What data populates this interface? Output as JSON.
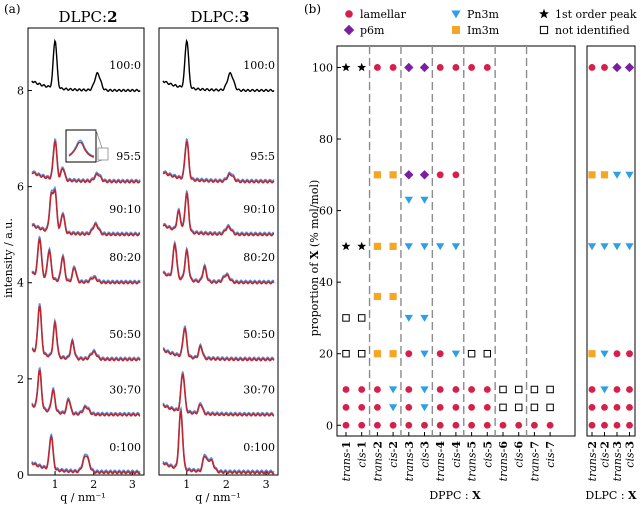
{
  "panel_a": {
    "panel_label": "(a)",
    "titles": [
      {
        "prefix": "DLPC:",
        "bold": "2"
      },
      {
        "prefix": "DLPC:",
        "bold": "3"
      }
    ],
    "ylabel": "intensity / a.u.",
    "xlabel": "q / nm⁻¹"
  },
  "panel_b": {
    "panel_label": "(b)",
    "ylabel_prefix": "proportion of ",
    "ylabel_bold": "X",
    "ylabel_suffix": " (% mol/mol)",
    "group1_prefix": "DPPC : ",
    "group1_bold": "X",
    "group2_prefix": "DLPC : ",
    "group2_bold": "X"
  },
  "legend": [
    {
      "label": "lamellar",
      "marker": "circle",
      "color": "#d6204b"
    },
    {
      "label": "Pn3m",
      "marker": "triangle",
      "color": "#2d9fe6"
    },
    {
      "label": "1st order peak",
      "marker": "star",
      "color": "#000000"
    },
    {
      "label": "p6m",
      "marker": "diamond",
      "color": "#7a1fa2"
    },
    {
      "label": "Im3m",
      "marker": "square",
      "color": "#f5a623"
    },
    {
      "label": "not identified",
      "marker": "opensquare",
      "color": "#000000"
    }
  ],
  "chart_data": [
    {
      "type": "line",
      "title": "DLPC:2",
      "xlabel": "q / nm⁻¹",
      "ylabel": "intensity / a.u.",
      "xlim": [
        0.3,
        3.3
      ],
      "ylim": [
        0,
        9.3
      ],
      "xticks": [
        1,
        2,
        3
      ],
      "yticks": [
        0,
        2,
        4,
        6,
        8
      ],
      "series": [
        {
          "name": "100:0",
          "offset": 8.0,
          "peaks": [
            [
              1.0,
              1.0
            ],
            [
              2.1,
              0.35
            ]
          ]
        },
        {
          "name": "95:5",
          "offset": 6.1,
          "peaks": [
            [
              1.0,
              0.8
            ],
            [
              1.2,
              0.25
            ],
            [
              2.1,
              0.15
            ]
          ]
        },
        {
          "name": "90:10",
          "offset": 5.0,
          "peaks": [
            [
              0.9,
              0.7
            ],
            [
              1.0,
              0.8
            ],
            [
              1.2,
              0.4
            ],
            [
              2.05,
              0.2
            ]
          ]
        },
        {
          "name": "80:20",
          "offset": 4.0,
          "peaks": [
            [
              0.6,
              0.8
            ],
            [
              0.85,
              0.6
            ],
            [
              1.2,
              0.5
            ],
            [
              1.5,
              0.3
            ],
            [
              2.0,
              0.1
            ]
          ]
        },
        {
          "name": "50:50",
          "offset": 2.4,
          "peaks": [
            [
              0.6,
              1.0
            ],
            [
              1.0,
              0.7
            ],
            [
              1.45,
              0.35
            ],
            [
              2.0,
              0.15
            ]
          ]
        },
        {
          "name": "30:70",
          "offset": 1.25,
          "peaks": [
            [
              0.6,
              0.8
            ],
            [
              0.95,
              0.45
            ],
            [
              1.35,
              0.3
            ],
            [
              1.8,
              0.15
            ]
          ]
        },
        {
          "name": "0:100",
          "offset": 0.05,
          "peaks": [
            [
              0.9,
              0.7
            ],
            [
              1.8,
              0.35
            ]
          ]
        }
      ]
    },
    {
      "type": "line",
      "title": "DLPC:3",
      "xlabel": "q / nm⁻¹",
      "xlim": [
        0.3,
        3.3
      ],
      "ylim": [
        0,
        9.3
      ],
      "xticks": [
        1,
        2,
        3
      ],
      "series": [
        {
          "name": "100:0",
          "offset": 8.0,
          "peaks": [
            [
              1.0,
              1.0
            ],
            [
              2.1,
              0.35
            ]
          ]
        },
        {
          "name": "95:5",
          "offset": 6.1,
          "peaks": [
            [
              1.0,
              0.8
            ],
            [
              2.1,
              0.15
            ]
          ]
        },
        {
          "name": "90:10",
          "offset": 5.0,
          "peaks": [
            [
              0.8,
              0.4
            ],
            [
              1.0,
              0.8
            ],
            [
              2.05,
              0.15
            ]
          ]
        },
        {
          "name": "80:20",
          "offset": 4.0,
          "peaks": [
            [
              0.7,
              0.7
            ],
            [
              1.0,
              0.6
            ],
            [
              1.45,
              0.3
            ],
            [
              2.0,
              0.15
            ]
          ]
        },
        {
          "name": "50:50",
          "offset": 2.4,
          "peaks": [
            [
              0.95,
              0.6
            ],
            [
              1.35,
              0.25
            ]
          ]
        },
        {
          "name": "30:70",
          "offset": 1.25,
          "peaks": [
            [
              0.9,
              0.8
            ],
            [
              1.35,
              0.2
            ]
          ]
        },
        {
          "name": "0:100",
          "offset": 0.05,
          "peaks": [
            [
              0.85,
              1.2
            ],
            [
              1.45,
              0.3
            ],
            [
              1.6,
              0.25
            ]
          ]
        }
      ]
    },
    {
      "type": "scatter",
      "xlabel": "DPPC : X",
      "ylabel": "proportion of X (% mol/mol)",
      "ylim": [
        -3,
        106
      ],
      "yticks": [
        0,
        20,
        40,
        60,
        80,
        100
      ],
      "categories": [
        "trans-1",
        "cis-1",
        "trans-2",
        "cis-2",
        "trans-3",
        "cis-3",
        "trans-4",
        "cis-4",
        "trans-5",
        "cis-5",
        "trans-6",
        "cis-6",
        "trans-7",
        "cis-7"
      ],
      "points": [
        {
          "cat": 0,
          "y": 100,
          "m": "star"
        },
        {
          "cat": 1,
          "y": 100,
          "m": "star"
        },
        {
          "cat": 0,
          "y": 50,
          "m": "star"
        },
        {
          "cat": 1,
          "y": 50,
          "m": "star"
        },
        {
          "cat": 0,
          "y": 30,
          "m": "opensquare"
        },
        {
          "cat": 1,
          "y": 30,
          "m": "opensquare"
        },
        {
          "cat": 0,
          "y": 20,
          "m": "opensquare"
        },
        {
          "cat": 1,
          "y": 20,
          "m": "opensquare"
        },
        {
          "cat": 0,
          "y": 10,
          "m": "circle"
        },
        {
          "cat": 1,
          "y": 10,
          "m": "circle"
        },
        {
          "cat": 0,
          "y": 5,
          "m": "circle"
        },
        {
          "cat": 1,
          "y": 5,
          "m": "circle"
        },
        {
          "cat": 0,
          "y": 0,
          "m": "circle"
        },
        {
          "cat": 1,
          "y": 0,
          "m": "circle"
        },
        {
          "cat": 2,
          "y": 100,
          "m": "circle"
        },
        {
          "cat": 3,
          "y": 100,
          "m": "circle"
        },
        {
          "cat": 2,
          "y": 70,
          "m": "square"
        },
        {
          "cat": 3,
          "y": 70,
          "m": "square"
        },
        {
          "cat": 2,
          "y": 50,
          "m": "square"
        },
        {
          "cat": 3,
          "y": 50,
          "m": "square"
        },
        {
          "cat": 2,
          "y": 36,
          "m": "square"
        },
        {
          "cat": 3,
          "y": 36,
          "m": "square"
        },
        {
          "cat": 2,
          "y": 20,
          "m": "square"
        },
        {
          "cat": 3,
          "y": 20,
          "m": "square"
        },
        {
          "cat": 2,
          "y": 10,
          "m": "circle"
        },
        {
          "cat": 3,
          "y": 10,
          "m": "triangle"
        },
        {
          "cat": 2,
          "y": 5,
          "m": "circle"
        },
        {
          "cat": 3,
          "y": 5,
          "m": "triangle"
        },
        {
          "cat": 2,
          "y": 0,
          "m": "circle"
        },
        {
          "cat": 3,
          "y": 0,
          "m": "circle"
        },
        {
          "cat": 4,
          "y": 100,
          "m": "diamond"
        },
        {
          "cat": 5,
          "y": 100,
          "m": "diamond"
        },
        {
          "cat": 4,
          "y": 70,
          "m": "diamond"
        },
        {
          "cat": 5,
          "y": 70,
          "m": "diamond"
        },
        {
          "cat": 4,
          "y": 63,
          "m": "triangle"
        },
        {
          "cat": 5,
          "y": 63,
          "m": "triangle"
        },
        {
          "cat": 4,
          "y": 50,
          "m": "triangle"
        },
        {
          "cat": 5,
          "y": 50,
          "m": "triangle"
        },
        {
          "cat": 4,
          "y": 30,
          "m": "triangle"
        },
        {
          "cat": 5,
          "y": 30,
          "m": "triangle"
        },
        {
          "cat": 4,
          "y": 20,
          "m": "circle"
        },
        {
          "cat": 5,
          "y": 20,
          "m": "triangle"
        },
        {
          "cat": 4,
          "y": 10,
          "m": "circle"
        },
        {
          "cat": 5,
          "y": 10,
          "m": "triangle"
        },
        {
          "cat": 4,
          "y": 5,
          "m": "circle"
        },
        {
          "cat": 5,
          "y": 5,
          "m": "triangle"
        },
        {
          "cat": 4,
          "y": 0,
          "m": "circle"
        },
        {
          "cat": 5,
          "y": 0,
          "m": "circle"
        },
        {
          "cat": 6,
          "y": 100,
          "m": "circle"
        },
        {
          "cat": 7,
          "y": 100,
          "m": "circle"
        },
        {
          "cat": 6,
          "y": 70,
          "m": "circle"
        },
        {
          "cat": 7,
          "y": 70,
          "m": "circle"
        },
        {
          "cat": 6,
          "y": 50,
          "m": "triangle"
        },
        {
          "cat": 7,
          "y": 50,
          "m": "triangle"
        },
        {
          "cat": 6,
          "y": 20,
          "m": "circle"
        },
        {
          "cat": 7,
          "y": 20,
          "m": "triangle"
        },
        {
          "cat": 6,
          "y": 10,
          "m": "circle"
        },
        {
          "cat": 7,
          "y": 10,
          "m": "circle"
        },
        {
          "cat": 6,
          "y": 5,
          "m": "circle"
        },
        {
          "cat": 7,
          "y": 5,
          "m": "circle"
        },
        {
          "cat": 6,
          "y": 0,
          "m": "circle"
        },
        {
          "cat": 7,
          "y": 0,
          "m": "circle"
        },
        {
          "cat": 8,
          "y": 100,
          "m": "circle"
        },
        {
          "cat": 9,
          "y": 100,
          "m": "circle"
        },
        {
          "cat": 8,
          "y": 20,
          "m": "opensquare"
        },
        {
          "cat": 9,
          "y": 20,
          "m": "opensquare"
        },
        {
          "cat": 8,
          "y": 10,
          "m": "circle"
        },
        {
          "cat": 9,
          "y": 10,
          "m": "circle"
        },
        {
          "cat": 8,
          "y": 5,
          "m": "circle"
        },
        {
          "cat": 9,
          "y": 5,
          "m": "circle"
        },
        {
          "cat": 8,
          "y": 0,
          "m": "circle"
        },
        {
          "cat": 9,
          "y": 0,
          "m": "circle"
        },
        {
          "cat": 10,
          "y": 10,
          "m": "opensquare"
        },
        {
          "cat": 11,
          "y": 10,
          "m": "opensquare"
        },
        {
          "cat": 10,
          "y": 5,
          "m": "opensquare"
        },
        {
          "cat": 11,
          "y": 5,
          "m": "opensquare"
        },
        {
          "cat": 10,
          "y": 0,
          "m": "circle"
        },
        {
          "cat": 11,
          "y": 0,
          "m": "circle"
        },
        {
          "cat": 12,
          "y": 10,
          "m": "opensquare"
        },
        {
          "cat": 13,
          "y": 10,
          "m": "opensquare"
        },
        {
          "cat": 12,
          "y": 5,
          "m": "opensquare"
        },
        {
          "cat": 13,
          "y": 5,
          "m": "opensquare"
        },
        {
          "cat": 12,
          "y": 0,
          "m": "circle"
        },
        {
          "cat": 13,
          "y": 0,
          "m": "circle"
        }
      ]
    },
    {
      "type": "scatter",
      "xlabel": "DLPC : X",
      "ylim": [
        -3,
        106
      ],
      "categories": [
        "trans-2",
        "cis-2",
        "trans-3",
        "cis-3"
      ],
      "points": [
        {
          "cat": 0,
          "y": 100,
          "m": "circle"
        },
        {
          "cat": 1,
          "y": 100,
          "m": "circle"
        },
        {
          "cat": 2,
          "y": 100,
          "m": "diamond"
        },
        {
          "cat": 3,
          "y": 100,
          "m": "diamond"
        },
        {
          "cat": 0,
          "y": 70,
          "m": "square"
        },
        {
          "cat": 1,
          "y": 70,
          "m": "square"
        },
        {
          "cat": 2,
          "y": 70,
          "m": "triangle"
        },
        {
          "cat": 3,
          "y": 70,
          "m": "triangle"
        },
        {
          "cat": 0,
          "y": 50,
          "m": "triangle"
        },
        {
          "cat": 1,
          "y": 50,
          "m": "triangle"
        },
        {
          "cat": 2,
          "y": 50,
          "m": "triangle"
        },
        {
          "cat": 3,
          "y": 50,
          "m": "triangle"
        },
        {
          "cat": 0,
          "y": 20,
          "m": "square"
        },
        {
          "cat": 1,
          "y": 20,
          "m": "triangle"
        },
        {
          "cat": 2,
          "y": 20,
          "m": "circle"
        },
        {
          "cat": 3,
          "y": 20,
          "m": "circle"
        },
        {
          "cat": 0,
          "y": 10,
          "m": "circle"
        },
        {
          "cat": 1,
          "y": 10,
          "m": "triangle"
        },
        {
          "cat": 2,
          "y": 10,
          "m": "circle"
        },
        {
          "cat": 3,
          "y": 10,
          "m": "circle"
        },
        {
          "cat": 0,
          "y": 5,
          "m": "circle"
        },
        {
          "cat": 1,
          "y": 5,
          "m": "circle"
        },
        {
          "cat": 2,
          "y": 5,
          "m": "circle"
        },
        {
          "cat": 3,
          "y": 5,
          "m": "circle"
        },
        {
          "cat": 0,
          "y": 0,
          "m": "circle"
        },
        {
          "cat": 1,
          "y": 0,
          "m": "circle"
        },
        {
          "cat": 2,
          "y": 0,
          "m": "circle"
        },
        {
          "cat": 3,
          "y": 0,
          "m": "circle"
        }
      ]
    }
  ]
}
